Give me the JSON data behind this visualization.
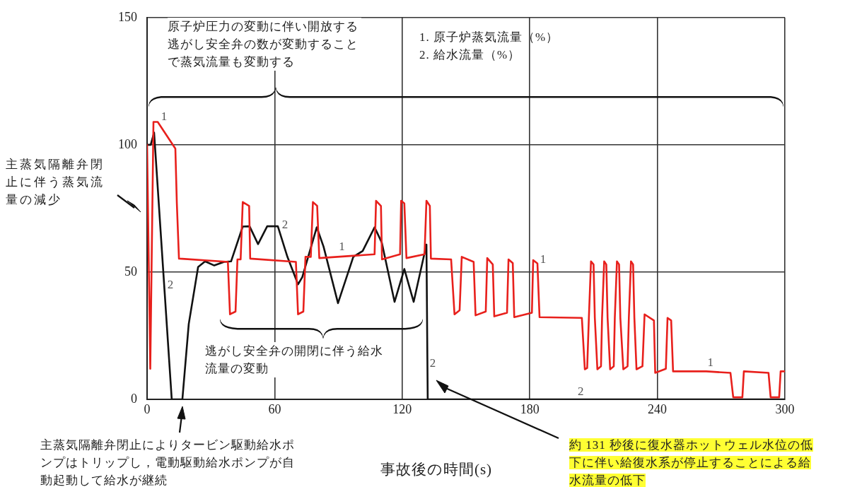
{
  "chart_data": {
    "type": "line",
    "xlabel": "事故後の時間(s)",
    "annotations": [
      "原子炉圧力の変動に伴い開放する逃がし安全弁の数が変動することで蒸気流量も変動する",
      "1. 原子炉蒸気流量（%）",
      "2. 給水流量（%）",
      "主蒸気隔離弁閉止に伴う蒸気流量の減少",
      "逃がし安全弁の開閉に伴う給水流量の変動",
      "主蒸気隔離弁閉止によりタービン駆動給水ポンプはトリップし，電動駆動給水ポンプが自動起動して給水が継続",
      "約 131 秒後に復水器ホットウェル水位の低下に伴い給復水系が停止することによる給水流量の低下"
    ],
    "xlim": [
      0,
      300
    ],
    "xticks": [
      0,
      60,
      120,
      180,
      240,
      300
    ],
    "ylim": [
      0,
      150
    ],
    "yticks": [
      0,
      50,
      100,
      150
    ],
    "grid": true,
    "legend": false,
    "marker": "none",
    "series": [
      {
        "name": "1",
        "color": "#e8201c",
        "x": [
          0,
          1.5,
          3,
          5,
          13.3,
          14,
          15,
          38,
          39,
          41.6,
          42.5,
          44,
          45,
          48,
          48.5,
          70,
          71,
          73.5,
          74.5,
          77,
          78,
          80,
          81,
          107,
          107.7,
          110,
          110.5,
          119,
          119.5,
          121,
          122,
          130.5,
          131.4,
          133,
          133.5,
          143,
          144.6,
          147,
          148,
          153.6,
          154.5,
          159.3,
          160,
          162.6,
          163.3,
          169.3,
          170,
          172,
          172.7,
          181,
          181.6,
          183.6,
          184.6,
          204.5,
          205.9,
          207,
          207.8,
          208.8,
          210,
          210.6,
          211.8,
          213.5,
          214,
          215,
          216,
          216.6,
          217.8,
          219.5,
          220,
          221,
          222,
          222.6,
          224,
          226,
          226.6,
          227.6,
          228.6,
          229.2,
          230.2,
          233,
          234,
          238.4,
          239,
          244,
          244.8,
          246.5,
          247.4,
          263,
          274.4,
          275.7,
          280,
          280.7,
          292.3,
          293.3,
          297.3,
          298,
          300
        ],
        "values": [
          100,
          12,
          109,
          109,
          98.5,
          77,
          55.3,
          54,
          33.4,
          34.5,
          55,
          55,
          77.5,
          76,
          55.3,
          54,
          33.4,
          34.5,
          56,
          56,
          77.5,
          76,
          55.5,
          57,
          78,
          76,
          55,
          57,
          78,
          77,
          55.5,
          57,
          78,
          76,
          55.3,
          55,
          33.4,
          35,
          56,
          54,
          33,
          34.5,
          55.5,
          53,
          32.6,
          34,
          55,
          53.5,
          32.3,
          34,
          54.7,
          53.4,
          32.3,
          32,
          11.8,
          12.3,
          32,
          54.2,
          53,
          32,
          11.8,
          13,
          32,
          54.2,
          53,
          32,
          11.8,
          13,
          32,
          54.2,
          53,
          32,
          11.8,
          13,
          32,
          54.2,
          53,
          32,
          11.8,
          13,
          33.4,
          31,
          10.4,
          12,
          32,
          31,
          11,
          11,
          10.4,
          0.8,
          0.8,
          11,
          10.4,
          0.8,
          0.8,
          11,
          11
        ]
      },
      {
        "name": "2",
        "color": "#111111",
        "x": [
          0,
          1.7,
          3.3,
          8.3,
          11.6,
          16.6,
          19.6,
          24,
          27.3,
          31.6,
          36.2,
          39.5,
          45,
          48.2,
          52.2,
          56.5,
          61.5,
          66,
          71,
          73,
          79.8,
          83,
          89.8,
          97,
          101.4,
          107,
          110.4,
          116.4,
          121,
          125.4,
          131.4,
          132,
          204,
          300
        ],
        "values": [
          100,
          100,
          104.8,
          41.6,
          0,
          0,
          29.6,
          52,
          54.2,
          52.6,
          54,
          54.2,
          67.9,
          68,
          61,
          68,
          68,
          56,
          45.2,
          48,
          67.6,
          60,
          37.8,
          56,
          58.3,
          67.6,
          61.6,
          38.3,
          51.2,
          38.3,
          60.8,
          0,
          0,
          0
        ]
      }
    ]
  }
}
